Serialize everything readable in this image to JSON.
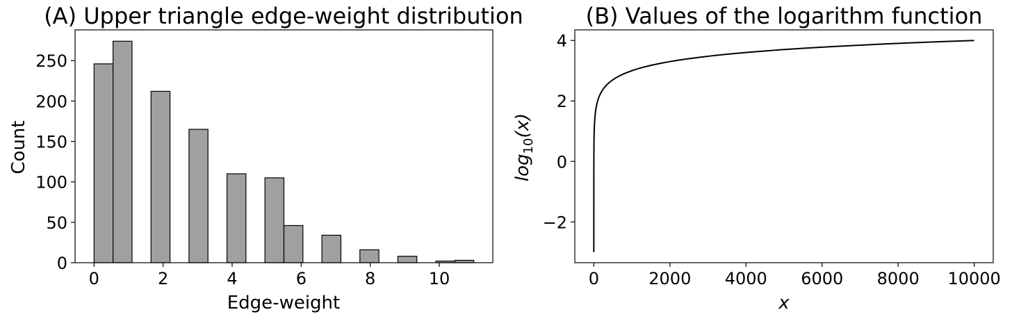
{
  "chart_data": [
    {
      "type": "bar",
      "title": "(A) Upper triangle edge-weight distribution",
      "xlabel": "Edge-weight",
      "ylabel": "Count",
      "xlim": [
        -0.55,
        11.55
      ],
      "ylim": [
        0,
        288
      ],
      "xticks": [
        0,
        2,
        4,
        6,
        8,
        10
      ],
      "yticks": [
        0,
        50,
        100,
        150,
        200,
        250
      ],
      "bar_color": "#a0a0a0",
      "edge_color": "#000000",
      "grid": false,
      "bars": [
        {
          "x0": 0.0,
          "x1": 0.55,
          "value": 246
        },
        {
          "x0": 0.55,
          "x1": 1.1,
          "value": 274
        },
        {
          "x0": 1.65,
          "x1": 2.2,
          "value": 212
        },
        {
          "x0": 2.75,
          "x1": 3.3,
          "value": 165
        },
        {
          "x0": 3.85,
          "x1": 4.4,
          "value": 110
        },
        {
          "x0": 4.95,
          "x1": 5.5,
          "value": 105
        },
        {
          "x0": 5.5,
          "x1": 6.05,
          "value": 46
        },
        {
          "x0": 6.6,
          "x1": 7.15,
          "value": 34
        },
        {
          "x0": 7.7,
          "x1": 8.25,
          "value": 16
        },
        {
          "x0": 8.8,
          "x1": 9.35,
          "value": 8
        },
        {
          "x0": 9.9,
          "x1": 10.45,
          "value": 2
        },
        {
          "x0": 10.45,
          "x1": 11.0,
          "value": 3
        }
      ]
    },
    {
      "type": "line",
      "title": "(B) Values of the logarithm function",
      "xlabel_base": "x",
      "ylabel_base": "log",
      "ylabel_sub": "10",
      "ylabel_arg": "(x)",
      "function": "log10",
      "x_range": [
        0.001,
        10000
      ],
      "xlim": [
        -500,
        10500
      ],
      "ylim": [
        -3.35,
        4.35
      ],
      "xticks": [
        0,
        2000,
        4000,
        6000,
        8000,
        10000
      ],
      "yticks": [
        -2,
        0,
        2,
        4
      ],
      "ytick_labels": [
        "−2",
        "0",
        "2",
        "4"
      ],
      "line_color": "#000000",
      "grid": false
    }
  ]
}
